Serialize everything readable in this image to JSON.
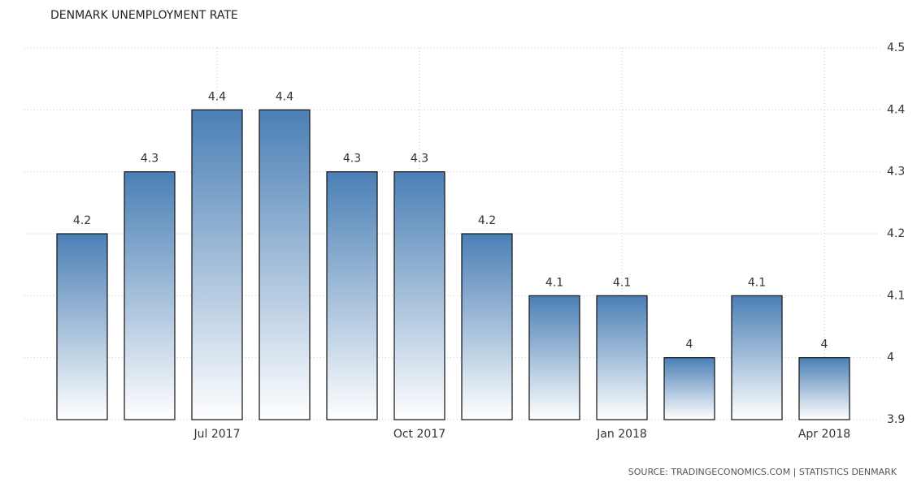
{
  "chart_data": {
    "type": "bar",
    "title": "DENMARK UNEMPLOYMENT RATE",
    "source": "SOURCE: TRADINGECONOMICS.COM | STATISTICS DENMARK",
    "categories": [
      null,
      null,
      "Jul 2017",
      null,
      null,
      "Oct 2017",
      null,
      null,
      "Jan 2018",
      null,
      null,
      "Apr 2018"
    ],
    "values": [
      4.2,
      4.3,
      4.4,
      4.4,
      4.3,
      4.3,
      4.2,
      4.1,
      4.1,
      4,
      4.1,
      4
    ],
    "color": "#4a7fb5",
    "ylim": [
      3.9,
      4.5
    ],
    "yticks": [
      3.9,
      4,
      4.1,
      4.2,
      4.3,
      4.4,
      4.5
    ],
    "grid": true
  }
}
